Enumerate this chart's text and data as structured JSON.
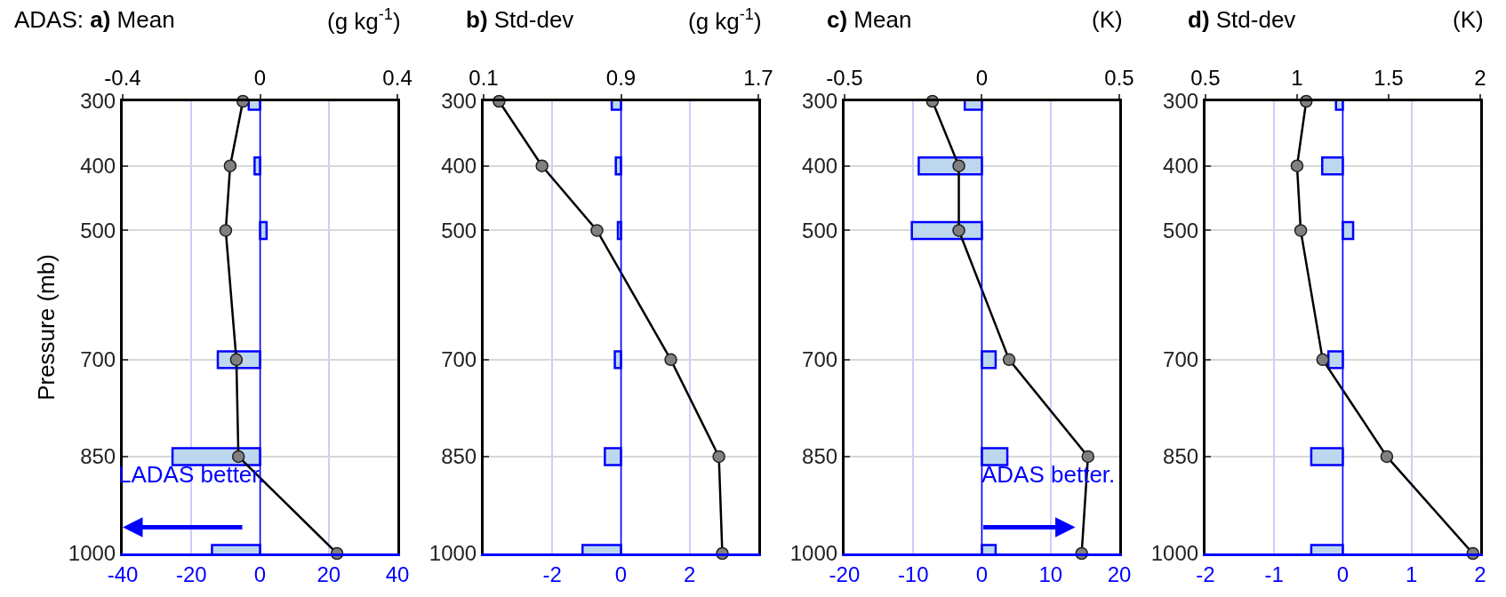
{
  "chart_data": [
    {
      "type": "bar",
      "orientation": "horizontal",
      "title": "ADAS: a) Mean",
      "x2label": "(g kg$^{-1}$)",
      "ylabel": "Pressure (mb)",
      "x": [
        300,
        400,
        500,
        700,
        850,
        1000
      ],
      "ylim": [
        1000,
        300
      ],
      "yticks": [
        300,
        400,
        500,
        700,
        850,
        1000
      ],
      "xlim": [
        -40,
        40
      ],
      "xticks": [
        -40,
        -20,
        0,
        20,
        40
      ],
      "x2lim": [
        -0.4,
        0.4
      ],
      "x2ticks": [
        -0.4,
        0,
        0.4
      ],
      "grid": true,
      "series": [
        {
          "color": "#bdd7ee",
          "values": [
            -3.3,
            -1.6,
            1.9,
            -12.3,
            -25.5,
            -14
          ]
        },
        {
          "type": "line",
          "axis": "x2",
          "color": "#000000",
          "marker": "circle",
          "values": [
            -0.05,
            -0.087,
            -0.1,
            -0.069,
            -0.063,
            0.224
          ]
        }
      ],
      "ref_lines": [
        {
          "axis": "x",
          "value": 0,
          "color": "#0000ff"
        }
      ],
      "annotations": [
        "LADAS better."
      ]
    },
    {
      "type": "bar",
      "orientation": "horizontal",
      "title": "b) Std-dev",
      "x2label": "(g kg$^{-1}$)",
      "x": [
        300,
        400,
        500,
        700,
        850,
        1000
      ],
      "ylim": [
        1000,
        300
      ],
      "yticks": [
        300,
        400,
        500,
        700,
        850,
        1000
      ],
      "xlim": [
        -4,
        4
      ],
      "xticks": [
        -2,
        0,
        2
      ],
      "x2lim": [
        0.1,
        1.7
      ],
      "x2ticks": [
        0.1,
        0.9,
        1.7
      ],
      "grid": true,
      "series": [
        {
          "color": "#bdd7ee",
          "values": [
            -0.27,
            -0.15,
            -0.09,
            -0.18,
            -0.47,
            -1.12
          ]
        },
        {
          "type": "line",
          "axis": "x2",
          "color": "#000000",
          "marker": "circle",
          "values": [
            0.19,
            0.44,
            0.76,
            1.19,
            1.47,
            1.49
          ]
        }
      ],
      "ref_lines": [
        {
          "axis": "x",
          "value": 0,
          "color": "#0000ff"
        }
      ]
    },
    {
      "type": "bar",
      "orientation": "horizontal",
      "title": "c) Mean",
      "x2label": "(K)",
      "x": [
        300,
        400,
        500,
        700,
        850,
        1000
      ],
      "ylim": [
        1000,
        300
      ],
      "yticks": [
        300,
        400,
        500,
        700,
        850,
        1000
      ],
      "xlim": [
        -20,
        20
      ],
      "xticks": [
        -20,
        -10,
        0,
        10,
        20
      ],
      "x2lim": [
        -0.5,
        0.5
      ],
      "x2ticks": [
        -0.5,
        0,
        0.5
      ],
      "grid": true,
      "series": [
        {
          "color": "#bdd7ee",
          "values": [
            -2.5,
            -9.2,
            -10.2,
            2.0,
            3.7,
            2.0
          ]
        },
        {
          "type": "line",
          "axis": "x2",
          "color": "#000000",
          "marker": "circle",
          "values": [
            -0.18,
            -0.084,
            -0.084,
            0.099,
            0.386,
            0.363
          ]
        }
      ],
      "ref_lines": [
        {
          "axis": "x",
          "value": 0,
          "color": "#0000ff"
        }
      ],
      "annotations": [
        "ADAS better."
      ]
    },
    {
      "type": "bar",
      "orientation": "horizontal",
      "title": "d) Std-dev",
      "x2label": "(K)",
      "x": [
        300,
        400,
        500,
        700,
        850,
        1000
      ],
      "ylim": [
        1000,
        300
      ],
      "yticks": [
        300,
        400,
        500,
        700,
        850,
        1000
      ],
      "xlim": [
        -2,
        2
      ],
      "xticks": [
        -2,
        -1,
        0,
        1,
        2
      ],
      "x2lim": [
        0.5,
        2
      ],
      "x2ticks": [
        0.5,
        1,
        1.5,
        2
      ],
      "grid": true,
      "series": [
        {
          "color": "#bdd7ee",
          "values": [
            -0.1,
            -0.3,
            0.15,
            -0.21,
            -0.46,
            -0.46
          ]
        },
        {
          "type": "line",
          "axis": "x2",
          "color": "#000000",
          "marker": "circle",
          "values": [
            1.05,
            1.0,
            1.02,
            1.14,
            1.49,
            1.96
          ]
        }
      ],
      "ref_lines": [
        {
          "axis": "x",
          "value": 0,
          "color": "#0000ff"
        }
      ]
    }
  ]
}
